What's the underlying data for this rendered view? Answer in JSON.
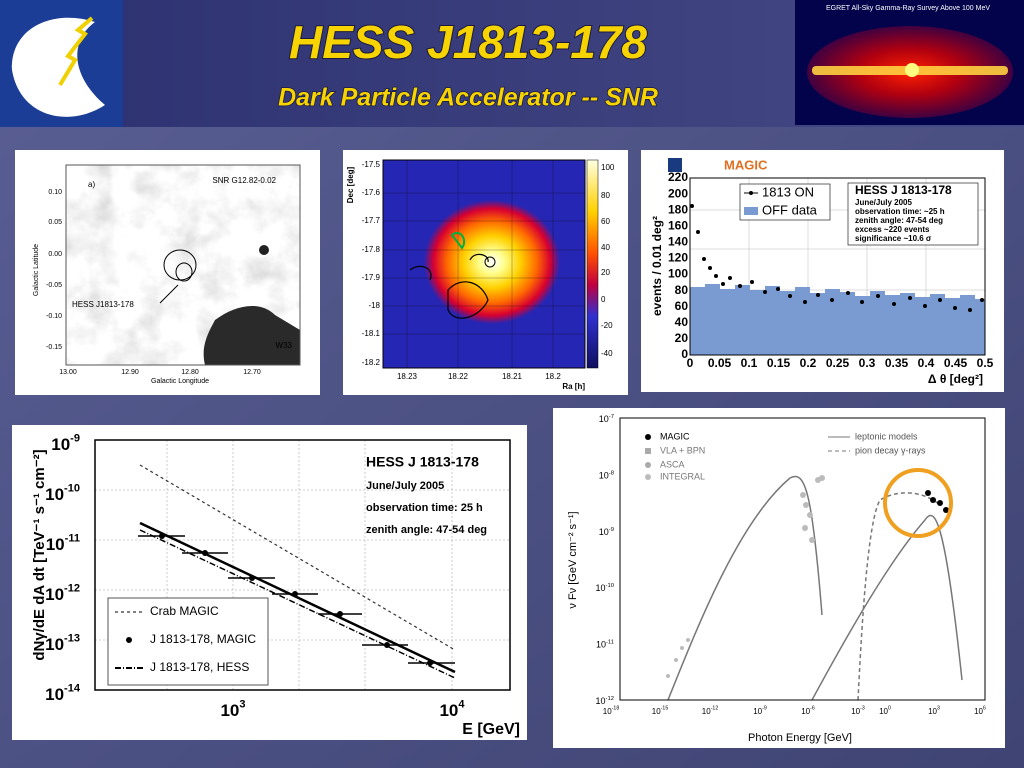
{
  "header": {
    "title": "HESS J1813-178",
    "subtitle": "Dark Particle Accelerator -- SNR",
    "inset_caption": "EGRET All-Sky Gamma-Ray Survey Above 100 MeV"
  },
  "panels": [
    {
      "label": "a)",
      "source": "SNR G12.82-0.02",
      "ylabel": "Galactic Latitude",
      "xlabel": "Galactic Longitude",
      "annotations": [
        "HESS J1813-178",
        "W33"
      ],
      "yticks": [
        "0.10",
        "0.05",
        "0.00",
        "-0.05",
        "-0.10",
        "-0.15"
      ],
      "xticks": [
        "13.00",
        "12.90",
        "12.80",
        "12.70"
      ]
    },
    {
      "ylabel": "Dec [deg]",
      "xlabel": "Ra [h]",
      "yticks": [
        "-17.5",
        "-17.6",
        "-17.7",
        "-17.8",
        "-17.9",
        "-18",
        "-18.1",
        "-18.2"
      ],
      "xticks": [
        "18.23",
        "18.22",
        "18.21",
        "18.2"
      ],
      "colorbar_ticks": [
        "100",
        "80",
        "60",
        "40",
        "20",
        "0",
        "-20",
        "-40"
      ]
    },
    {
      "logo_text": "MAGIC",
      "ylabel": "events / 0.01 deg²",
      "xlabel": "Δ θ [deg²]",
      "legend": [
        "1813 ON",
        "OFF data"
      ],
      "info_title": "HESS J 1813-178",
      "info_lines": [
        "June/July 2005",
        "observation time: ~25 h",
        "zenith angle: 47-54 deg",
        "excess ~220 events",
        "significance ~10.6 σ"
      ],
      "yticks": [
        "0",
        "20",
        "40",
        "60",
        "80",
        "100",
        "120",
        "140",
        "160",
        "180",
        "200",
        "220"
      ],
      "xticks": [
        "0",
        "0.05",
        "0.1",
        "0.15",
        "0.2",
        "0.25",
        "0.3",
        "0.35",
        "0.4",
        "0.45",
        "0.5"
      ]
    },
    {
      "info_title": "HESS J 1813-178",
      "info_lines": [
        "June/July 2005",
        "observation time: 25 h",
        "zenith angle: 47-54 deg"
      ],
      "legend": [
        "Crab MAGIC",
        "J 1813-178, MAGIC",
        "J 1813-178, HESS"
      ],
      "ylabel": "dNγ/dE dA dt [TeV⁻¹ s⁻¹ cm⁻²]",
      "xlabel": "E [GeV]",
      "yticks": [
        {
          "base": "10",
          "exp": "-9"
        },
        {
          "base": "10",
          "exp": "-10"
        },
        {
          "base": "10",
          "exp": "-11"
        },
        {
          "base": "10",
          "exp": "-12"
        },
        {
          "base": "10",
          "exp": "-13"
        },
        {
          "base": "10",
          "exp": "-14"
        }
      ],
      "xticks": [
        {
          "base": "10",
          "exp": "3"
        },
        {
          "base": "10",
          "exp": "4"
        }
      ]
    },
    {
      "legend_points": [
        "MAGIC",
        "VLA + BPN",
        "ASCA",
        "INTEGRAL"
      ],
      "legend_lines": [
        "leptonic models",
        "pion decay γ-rays"
      ],
      "ylabel": "ν Fν [GeV cm⁻² s⁻¹]",
      "xlabel": "Photon Energy [GeV]",
      "yticks": [
        {
          "base": "10",
          "exp": "-7"
        },
        {
          "base": "10",
          "exp": "-8"
        },
        {
          "base": "10",
          "exp": "-9"
        },
        {
          "base": "10",
          "exp": "-10"
        },
        {
          "base": "10",
          "exp": "-11"
        },
        {
          "base": "10",
          "exp": "-12"
        }
      ],
      "xticks": [
        {
          "base": "10",
          "exp": "-18"
        },
        {
          "base": "10",
          "exp": "-15"
        },
        {
          "base": "10",
          "exp": "-12"
        },
        {
          "base": "10",
          "exp": "-9"
        },
        {
          "base": "10",
          "exp": "-6"
        },
        {
          "base": "10",
          "exp": "-3"
        },
        {
          "base": "10",
          "exp": "0"
        },
        {
          "base": "10",
          "exp": "3"
        },
        {
          "base": "10",
          "exp": "6"
        }
      ]
    }
  ]
}
